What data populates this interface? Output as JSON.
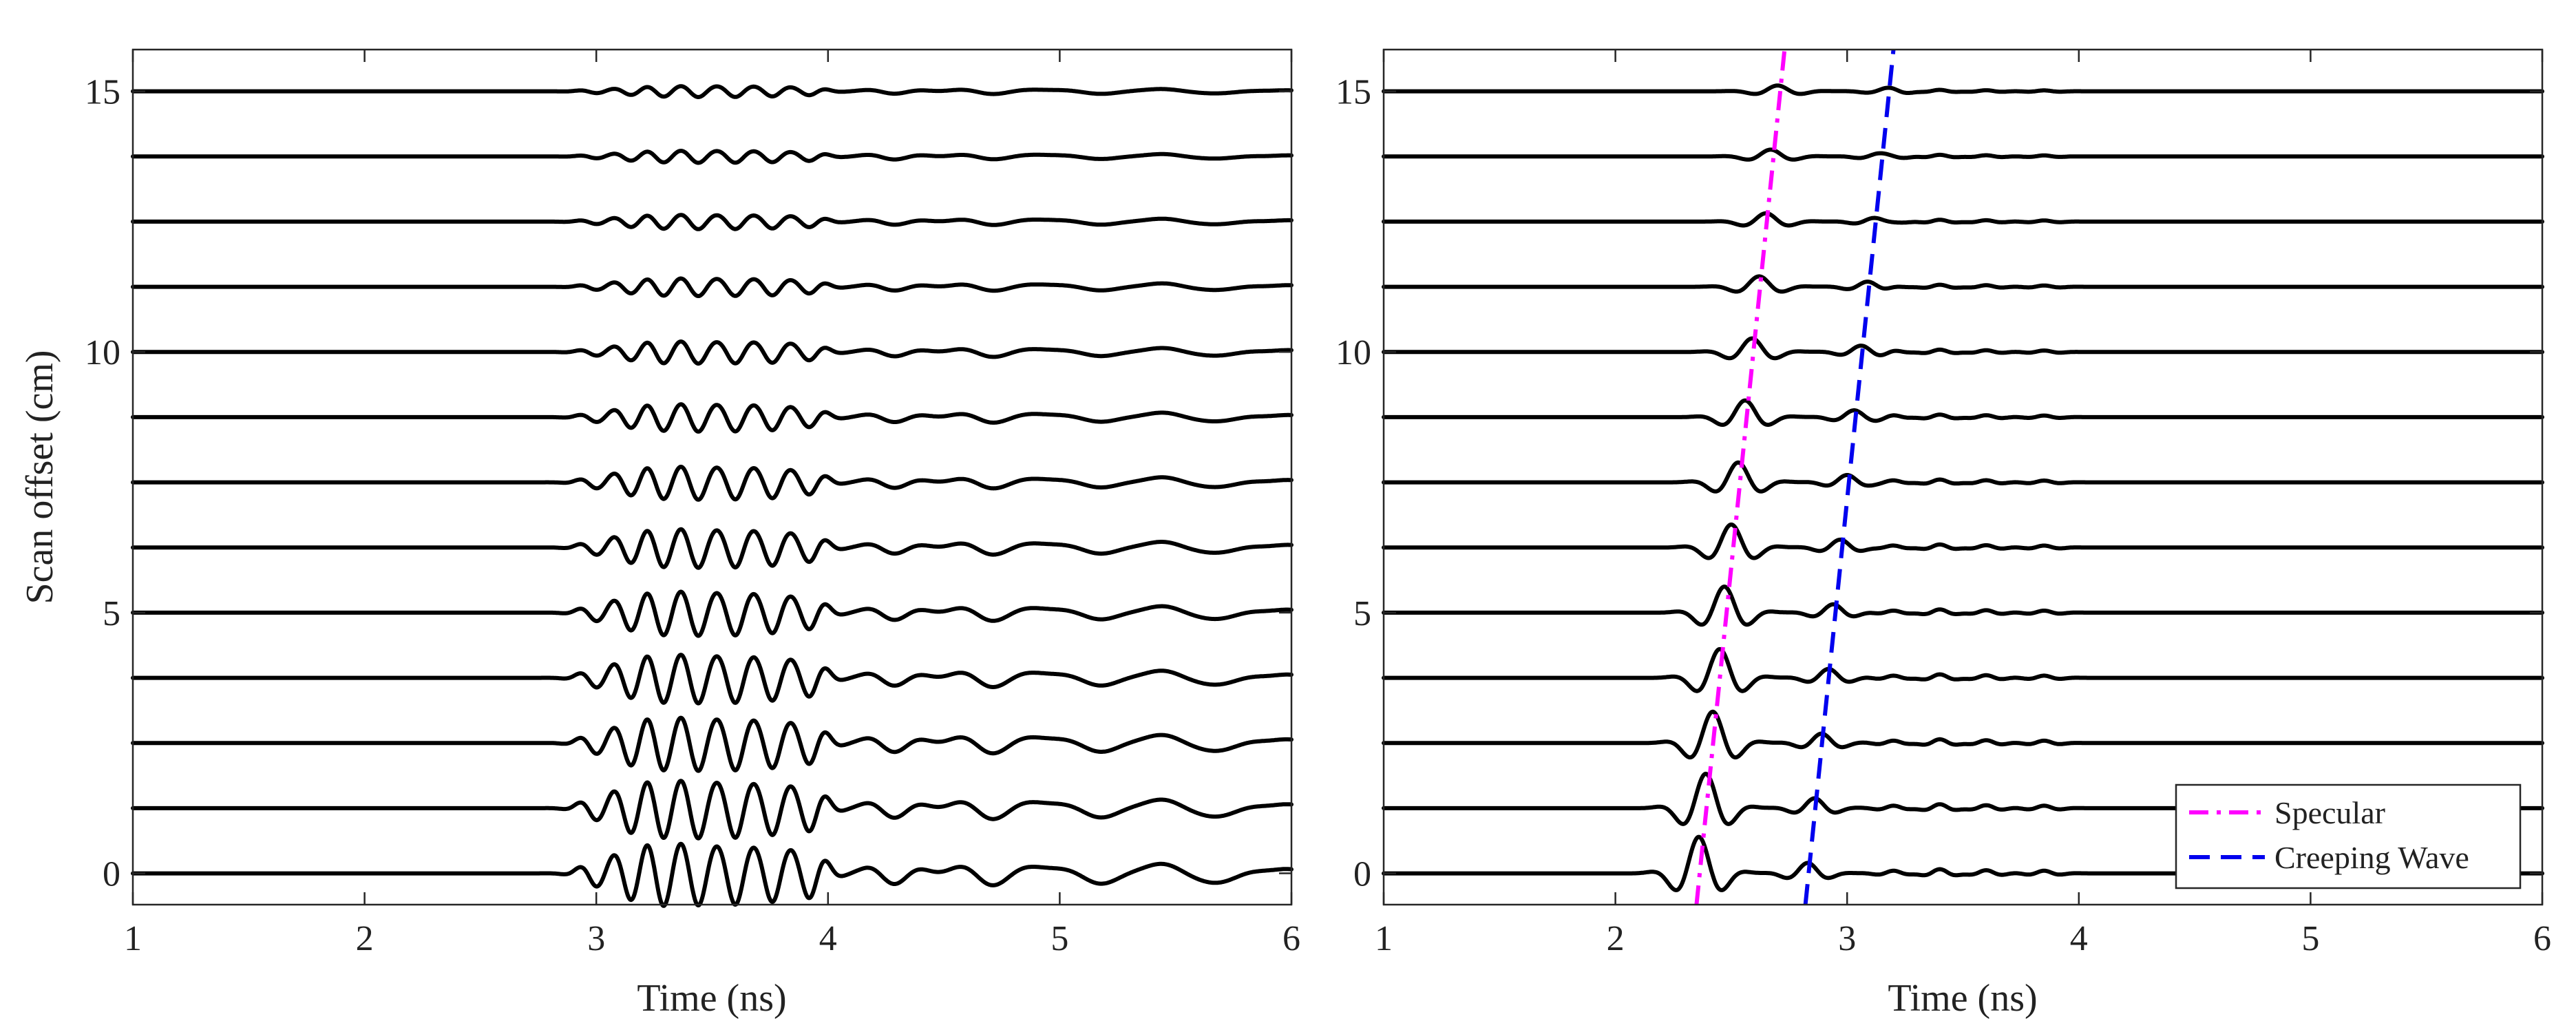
{
  "chart_data": [
    {
      "type": "line",
      "panel": "left",
      "xlabel": "Time (ns)",
      "ylabel": "Scan offset (cm)",
      "xlim": [
        1,
        6
      ],
      "ylim": [
        -0.6,
        15.8
      ],
      "xticks": [
        1,
        2,
        3,
        4,
        5,
        6
      ],
      "yticks": [
        0,
        5,
        10,
        15
      ],
      "grid": false,
      "series": [
        {
          "offset": 0.0,
          "arrivals_ns": [
            3.0,
            3.15,
            3.29,
            3.44,
            3.6,
            3.76,
            3.92,
            4.28,
            4.7,
            5.18,
            5.68
          ],
          "amplitudes_cm": [
            0.22,
            0.45,
            0.55,
            0.55,
            0.55,
            0.5,
            0.45,
            0.18,
            0.22,
            0.2,
            0.18
          ]
        },
        {
          "offset": 1.25,
          "arrivals_ns": [
            3.0,
            3.15,
            3.29,
            3.44,
            3.6,
            3.76,
            3.92,
            4.28,
            4.7,
            5.18,
            5.68
          ],
          "amplitudes_cm": [
            0.2,
            0.42,
            0.5,
            0.52,
            0.52,
            0.47,
            0.42,
            0.16,
            0.2,
            0.18,
            0.16
          ]
        },
        {
          "offset": 2.5,
          "arrivals_ns": [
            3.0,
            3.15,
            3.29,
            3.44,
            3.6,
            3.76,
            3.92,
            4.28,
            4.7,
            5.18,
            5.68
          ],
          "amplitudes_cm": [
            0.18,
            0.38,
            0.46,
            0.48,
            0.48,
            0.44,
            0.38,
            0.15,
            0.19,
            0.17,
            0.15
          ]
        },
        {
          "offset": 3.75,
          "arrivals_ns": [
            3.0,
            3.15,
            3.29,
            3.44,
            3.6,
            3.76,
            3.92,
            4.28,
            4.7,
            5.18,
            5.68
          ],
          "amplitudes_cm": [
            0.16,
            0.34,
            0.42,
            0.44,
            0.44,
            0.4,
            0.34,
            0.13,
            0.17,
            0.15,
            0.13
          ]
        },
        {
          "offset": 5.0,
          "arrivals_ns": [
            3.0,
            3.15,
            3.29,
            3.44,
            3.6,
            3.76,
            3.92,
            4.28,
            4.7,
            5.18,
            5.68
          ],
          "amplitudes_cm": [
            0.14,
            0.3,
            0.38,
            0.4,
            0.4,
            0.36,
            0.3,
            0.12,
            0.15,
            0.13,
            0.12
          ]
        },
        {
          "offset": 6.25,
          "arrivals_ns": [
            3.0,
            3.15,
            3.29,
            3.44,
            3.6,
            3.76,
            3.92,
            4.28,
            4.7,
            5.18,
            5.68
          ],
          "amplitudes_cm": [
            0.12,
            0.26,
            0.33,
            0.35,
            0.35,
            0.32,
            0.26,
            0.1,
            0.13,
            0.12,
            0.1
          ]
        },
        {
          "offset": 7.5,
          "arrivals_ns": [
            3.0,
            3.15,
            3.29,
            3.44,
            3.6,
            3.76,
            3.92,
            4.28,
            4.7,
            5.18,
            5.68
          ],
          "amplitudes_cm": [
            0.1,
            0.22,
            0.28,
            0.3,
            0.3,
            0.28,
            0.22,
            0.09,
            0.11,
            0.1,
            0.09
          ]
        },
        {
          "offset": 8.75,
          "arrivals_ns": [
            3.0,
            3.15,
            3.29,
            3.44,
            3.6,
            3.76,
            3.92,
            4.28,
            4.7,
            5.18,
            5.68
          ],
          "amplitudes_cm": [
            0.08,
            0.18,
            0.23,
            0.25,
            0.25,
            0.23,
            0.18,
            0.08,
            0.1,
            0.09,
            0.08
          ]
        },
        {
          "offset": 10.0,
          "arrivals_ns": [
            3.0,
            3.15,
            3.29,
            3.44,
            3.6,
            3.76,
            3.92,
            4.28,
            4.7,
            5.18,
            5.68
          ],
          "amplitudes_cm": [
            0.06,
            0.14,
            0.19,
            0.2,
            0.2,
            0.19,
            0.15,
            0.07,
            0.09,
            0.08,
            0.07
          ]
        },
        {
          "offset": 11.25,
          "arrivals_ns": [
            3.0,
            3.15,
            3.29,
            3.44,
            3.6,
            3.76,
            3.92,
            4.28,
            4.7,
            5.18,
            5.68
          ],
          "amplitudes_cm": [
            0.05,
            0.11,
            0.15,
            0.16,
            0.16,
            0.15,
            0.12,
            0.06,
            0.07,
            0.07,
            0.06
          ]
        },
        {
          "offset": 12.5,
          "arrivals_ns": [
            3.0,
            3.15,
            3.29,
            3.44,
            3.6,
            3.76,
            3.92,
            4.28,
            4.7,
            5.18,
            5.68
          ],
          "amplitudes_cm": [
            0.04,
            0.09,
            0.12,
            0.13,
            0.13,
            0.12,
            0.1,
            0.05,
            0.06,
            0.06,
            0.05
          ]
        },
        {
          "offset": 13.75,
          "arrivals_ns": [
            3.0,
            3.15,
            3.29,
            3.44,
            3.6,
            3.76,
            3.92,
            4.28,
            4.7,
            5.18,
            5.68
          ],
          "amplitudes_cm": [
            0.03,
            0.07,
            0.1,
            0.11,
            0.11,
            0.1,
            0.08,
            0.05,
            0.05,
            0.05,
            0.04
          ]
        },
        {
          "offset": 15.0,
          "arrivals_ns": [
            3.0,
            3.15,
            3.29,
            3.44,
            3.6,
            3.76,
            3.92,
            4.28,
            4.7,
            5.18,
            5.68
          ],
          "amplitudes_cm": [
            0.03,
            0.06,
            0.09,
            0.1,
            0.1,
            0.09,
            0.07,
            0.04,
            0.05,
            0.05,
            0.04
          ]
        }
      ]
    },
    {
      "type": "line",
      "panel": "right",
      "xlabel": "Time (ns)",
      "ylabel": "",
      "xlim": [
        1,
        6
      ],
      "ylim": [
        -0.6,
        15.8
      ],
      "xticks": [
        1,
        2,
        3,
        4,
        5,
        6
      ],
      "yticks": [
        0,
        5,
        10,
        15
      ],
      "grid": false,
      "legend": {
        "position": "bottom-right",
        "entries": [
          {
            "label": "Specular",
            "color": "#ff00ff",
            "style": "dash-dot"
          },
          {
            "label": "Creeping Wave",
            "color": "#0000ee",
            "style": "dashed"
          }
        ]
      },
      "fit_lines": [
        {
          "name": "Specular",
          "points": [
            [
              2.35,
              -0.6
            ],
            [
              2.73,
              15.8
            ]
          ]
        },
        {
          "name": "Creeping Wave",
          "points": [
            [
              2.82,
              -0.6
            ],
            [
              3.2,
              15.8
            ]
          ]
        }
      ],
      "series": [
        {
          "offset": 0.0,
          "specular_ns": 2.36,
          "creeping_ns": 2.83,
          "amplitudes_cm": [
            0.7,
            0.2
          ]
        },
        {
          "offset": 1.25,
          "specular_ns": 2.39,
          "creeping_ns": 2.86,
          "amplitudes_cm": [
            0.66,
            0.19
          ]
        },
        {
          "offset": 2.5,
          "specular_ns": 2.42,
          "creeping_ns": 2.89,
          "amplitudes_cm": [
            0.6,
            0.18
          ]
        },
        {
          "offset": 3.75,
          "specular_ns": 2.45,
          "creeping_ns": 2.92,
          "amplitudes_cm": [
            0.55,
            0.17
          ]
        },
        {
          "offset": 5.0,
          "specular_ns": 2.47,
          "creeping_ns": 2.94,
          "amplitudes_cm": [
            0.5,
            0.16
          ]
        },
        {
          "offset": 6.25,
          "specular_ns": 2.5,
          "creeping_ns": 2.97,
          "amplitudes_cm": [
            0.44,
            0.15
          ]
        },
        {
          "offset": 7.5,
          "specular_ns": 2.53,
          "creeping_ns": 3.0,
          "amplitudes_cm": [
            0.38,
            0.14
          ]
        },
        {
          "offset": 8.75,
          "specular_ns": 2.56,
          "creeping_ns": 3.03,
          "amplitudes_cm": [
            0.32,
            0.13
          ]
        },
        {
          "offset": 10.0,
          "specular_ns": 2.59,
          "creeping_ns": 3.06,
          "amplitudes_cm": [
            0.26,
            0.12
          ]
        },
        {
          "offset": 11.25,
          "specular_ns": 2.62,
          "creeping_ns": 3.09,
          "amplitudes_cm": [
            0.2,
            0.1
          ]
        },
        {
          "offset": 12.5,
          "specular_ns": 2.65,
          "creeping_ns": 3.12,
          "amplitudes_cm": [
            0.16,
            0.08
          ]
        },
        {
          "offset": 13.75,
          "specular_ns": 2.67,
          "creeping_ns": 3.14,
          "amplitudes_cm": [
            0.13,
            0.07
          ]
        },
        {
          "offset": 15.0,
          "specular_ns": 2.7,
          "creeping_ns": 3.17,
          "amplitudes_cm": [
            0.11,
            0.06
          ]
        }
      ]
    }
  ]
}
